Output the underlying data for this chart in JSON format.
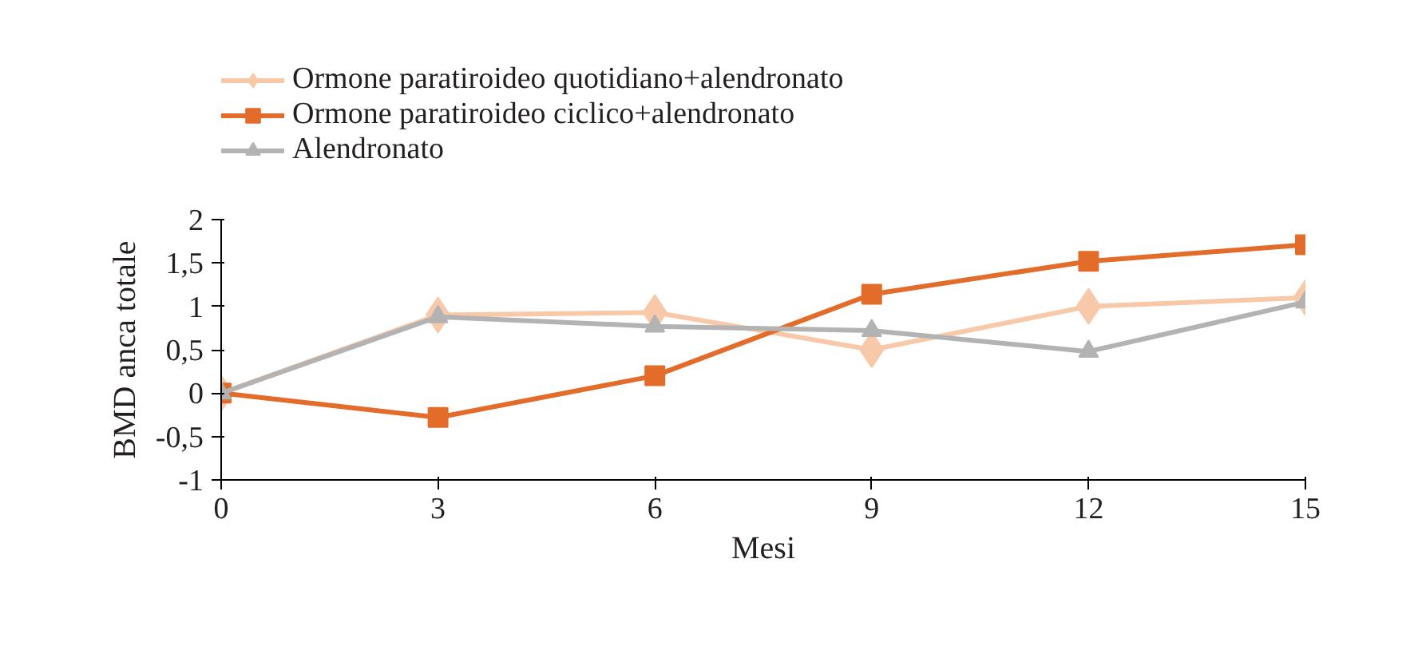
{
  "chart_data": {
    "type": "line",
    "xlabel": "Mesi",
    "ylabel": "BMD anca totale",
    "x": [
      0,
      3,
      6,
      9,
      12,
      15
    ],
    "xlim": [
      0,
      15
    ],
    "xticks": [
      0,
      3,
      6,
      9,
      12,
      15
    ],
    "ylim": [
      -1,
      2
    ],
    "yticks": [
      {
        "value": -1,
        "label": "-1"
      },
      {
        "value": -0.5,
        "label": "-0,5"
      },
      {
        "value": 0,
        "label": "0"
      },
      {
        "value": 0.5,
        "label": "0,5"
      },
      {
        "value": 1,
        "label": "1"
      },
      {
        "value": 1.5,
        "label": "1,5"
      },
      {
        "value": 2,
        "label": "2"
      }
    ],
    "grid": false,
    "legend": "top left",
    "line_style": "solid",
    "series": [
      {
        "name": "Ormone paratiroideo quotidiano+alendronato",
        "color": "#f8c9a8",
        "marker": "diamond",
        "values": [
          0,
          0.9,
          0.93,
          0.5,
          1.0,
          1.1
        ]
      },
      {
        "name": "Ormone paratiroideo ciclico+alendronato",
        "color": "#e46c2b",
        "marker": "square",
        "values": [
          0,
          -0.28,
          0.2,
          1.14,
          1.52,
          1.71
        ]
      },
      {
        "name": "Alendronato",
        "color": "#b3b3b3",
        "marker": "triangle",
        "values": [
          0,
          0.88,
          0.77,
          0.72,
          0.48,
          1.05
        ]
      }
    ]
  }
}
